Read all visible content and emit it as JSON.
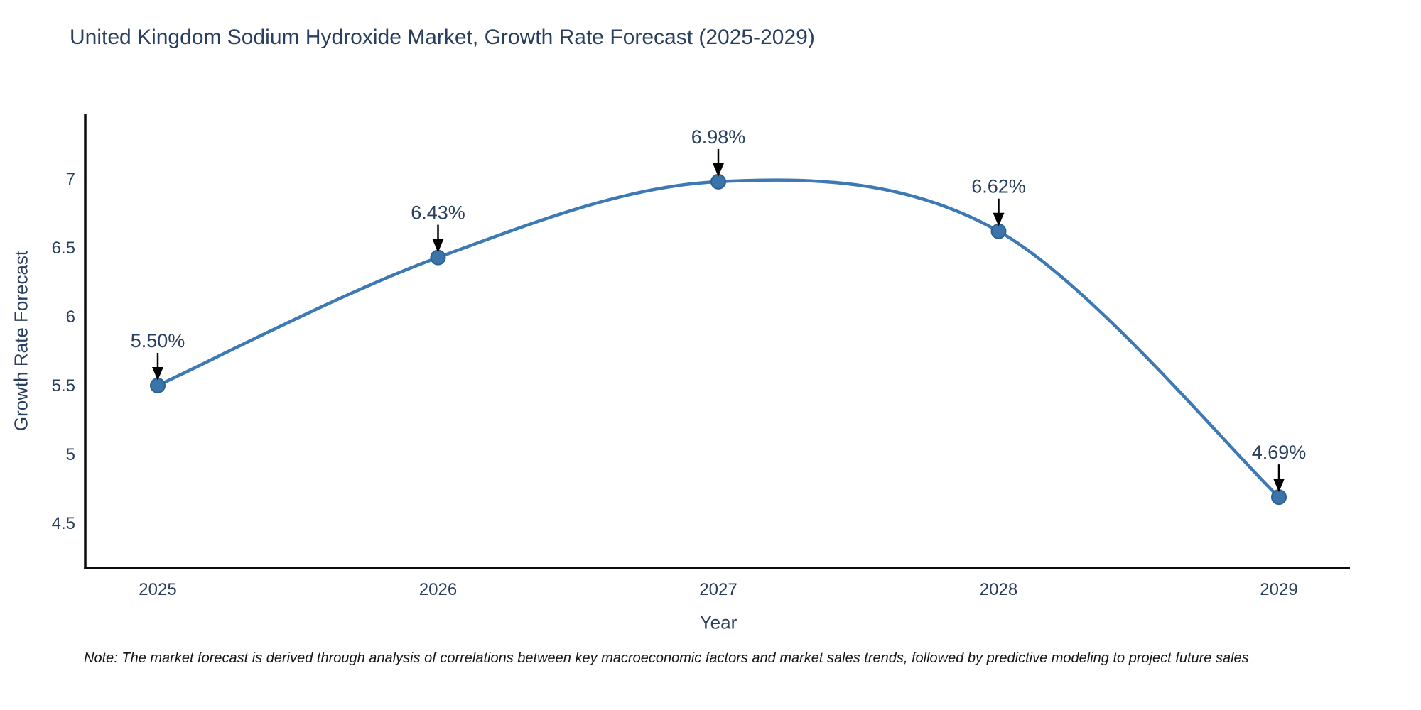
{
  "page": {
    "background": "#ffffff"
  },
  "chart_data": {
    "type": "line",
    "title": "United Kingdom Sodium Hydroxide Market, Growth Rate Forecast (2025-2029)",
    "xlabel": "Year",
    "ylabel": "Growth Rate Forecast",
    "categories": [
      2025,
      2026,
      2027,
      2028,
      2029
    ],
    "values": [
      5.5,
      6.43,
      6.98,
      6.62,
      4.69
    ],
    "point_labels": [
      "5.50%",
      "6.43%",
      "6.98%",
      "6.62%",
      "4.69%"
    ],
    "xtick_labels": [
      "2025",
      "2026",
      "2027",
      "2028",
      "2029"
    ],
    "ytick_values": [
      4.5,
      5,
      5.5,
      6,
      6.5,
      7
    ],
    "ytick_labels": [
      "4.5",
      "5",
      "5.5",
      "6",
      "6.5",
      "7"
    ],
    "ylim": [
      4.17,
      7.47
    ],
    "xlim": [
      2024.74,
      2029.26
    ],
    "grid": false,
    "legend_position": "none",
    "line_shape": "spline",
    "annotation_style": "black-down-arrows",
    "colors": {
      "line": "#3d79b2",
      "marker_fill": "#3a74a9",
      "marker_edge": "#2d6191",
      "arrow": "#000000",
      "text": "#2a3f5f",
      "axis_line": "#0b0b0b",
      "note_text": "#161616"
    },
    "note": "Note: The market forecast is derived through analysis of correlations between key macroeconomic factors and market sales trends, followed by predictive modeling to project future sales"
  }
}
